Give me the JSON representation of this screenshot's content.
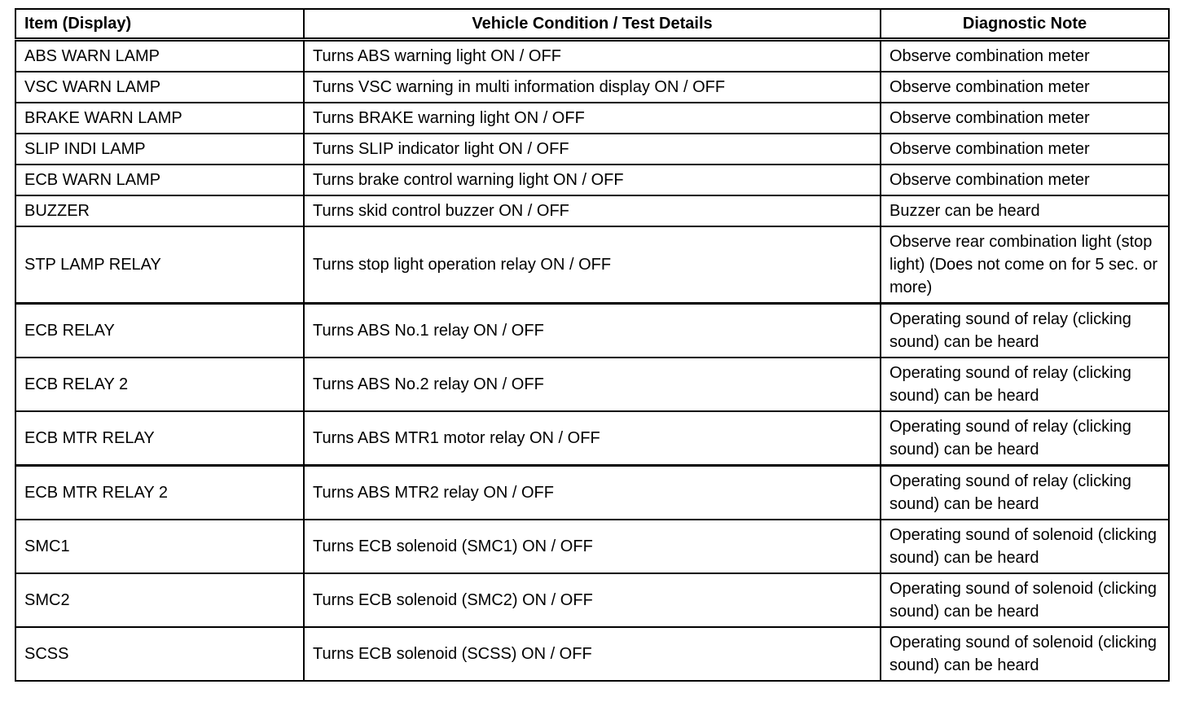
{
  "table": {
    "headers": [
      "Item (Display)",
      "Vehicle Condition / Test Details",
      "Diagnostic Note"
    ],
    "rows": [
      [
        "ABS WARN LAMP",
        "Turns ABS warning light ON / OFF",
        "Observe combination meter"
      ],
      [
        "VSC WARN LAMP",
        "Turns VSC warning in multi information display ON / OFF",
        "Observe combination meter"
      ],
      [
        "BRAKE WARN LAMP",
        "Turns BRAKE warning light ON / OFF",
        "Observe combination meter"
      ],
      [
        "SLIP INDI LAMP",
        "Turns SLIP indicator light ON / OFF",
        "Observe combination meter"
      ],
      [
        "ECB WARN LAMP",
        "Turns brake control warning light ON / OFF",
        "Observe combination meter"
      ],
      [
        "BUZZER",
        "Turns skid control buzzer ON / OFF",
        "Buzzer can be heard"
      ],
      [
        "STP LAMP RELAY",
        "Turns stop light operation relay ON / OFF",
        "Observe rear combination light (stop light) (Does not come on for 5 sec. or more)"
      ],
      [
        "ECB RELAY",
        "Turns ABS No.1 relay ON / OFF",
        "Operating sound of relay (clicking sound) can be heard"
      ],
      [
        "ECB RELAY 2",
        "Turns ABS No.2 relay ON / OFF",
        "Operating sound of relay (clicking sound) can be heard"
      ],
      [
        "ECB MTR RELAY",
        "Turns ABS MTR1 motor relay ON / OFF",
        "Operating sound of relay (clicking sound) can be heard"
      ],
      [
        "ECB MTR RELAY 2",
        "Turns ABS MTR2 relay ON / OFF",
        "Operating sound of relay (clicking sound) can be heard"
      ],
      [
        "SMC1",
        "Turns ECB solenoid (SMC1) ON / OFF",
        "Operating sound of solenoid (clicking sound) can be heard"
      ],
      [
        "SMC2",
        "Turns ECB solenoid (SMC2) ON / OFF",
        "Operating sound of solenoid (clicking sound) can be heard"
      ],
      [
        "SCSS",
        "Turns ECB solenoid (SCSS) ON / OFF",
        "Operating sound of solenoid (clicking sound) can be heard"
      ]
    ]
  }
}
